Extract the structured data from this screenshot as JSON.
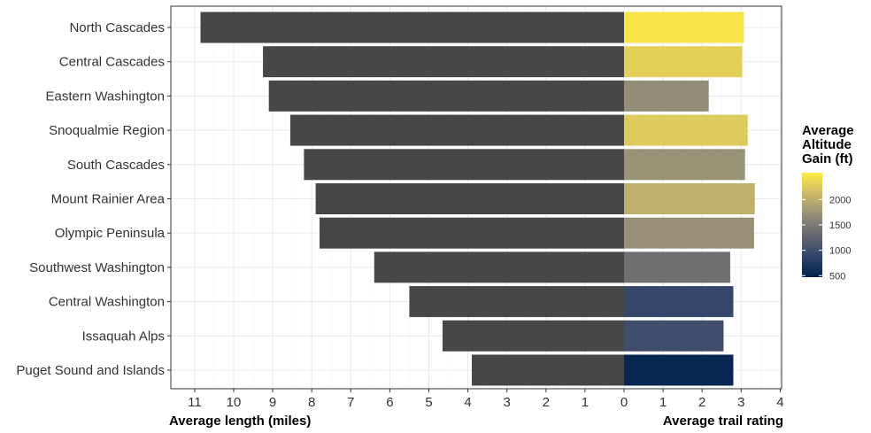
{
  "chart_data": {
    "type": "bar",
    "orientation": "horizontal-diverging",
    "categories": [
      "North Cascades",
      "Central Cascades",
      "Eastern Washington",
      "Snoqualmie Region",
      "South Cascades",
      "Mount Rainier Area",
      "Olympic Peninsula",
      "Southwest Washington",
      "Central Washington",
      "Issaquah Alps",
      "Puget Sound and Islands"
    ],
    "series": [
      {
        "name": "Average length (miles)",
        "side": "left",
        "color": "#474747",
        "values": [
          10.85,
          9.25,
          9.1,
          8.55,
          8.2,
          7.9,
          7.8,
          6.4,
          5.5,
          4.65,
          3.9
        ]
      },
      {
        "name": "Average trail rating",
        "side": "right",
        "values": [
          3.07,
          3.03,
          2.17,
          3.17,
          3.1,
          3.35,
          3.33,
          2.72,
          2.8,
          2.55,
          2.8
        ]
      }
    ],
    "altitude_gain": [
      2480,
      2310,
      1700,
      2260,
      1740,
      2030,
      1720,
      1370,
      920,
      1000,
      540
    ],
    "xlabel_left": "Average length (miles)",
    "xlabel_right": "Average trail rating",
    "left_ticks": [
      "11",
      "10",
      "9",
      "8",
      "7",
      "6",
      "5",
      "4",
      "3",
      "2",
      "1",
      "0"
    ],
    "right_ticks": [
      "1",
      "2",
      "3",
      "4"
    ],
    "xlim_left": [
      11.4,
      0
    ],
    "xlim_right": [
      0,
      4
    ],
    "grid": true,
    "legend": {
      "title_lines": [
        "Average",
        "Altitude",
        "Gain (ft)"
      ],
      "ticks": [
        "2000",
        "1500",
        "1000",
        "500"
      ],
      "tick_values": [
        2000,
        1500,
        1000,
        500
      ],
      "range": [
        470,
        2530
      ],
      "placement": "right",
      "colors": [
        "#00204d",
        "#31446b",
        "#666870",
        "#958f78",
        "#cbba69",
        "#ffea46"
      ]
    }
  }
}
